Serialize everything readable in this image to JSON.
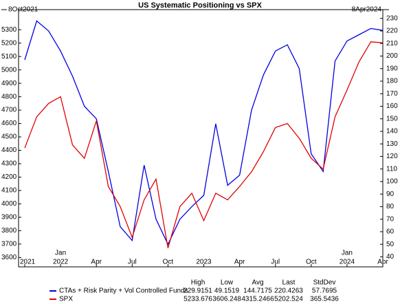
{
  "chart_data": {
    "type": "line",
    "title": "US Systematic Positioning vs SPX",
    "start_label": "8Oct2021",
    "end_label": "8Apr2024",
    "x": [
      "2021-10",
      "2021-11",
      "2021-12",
      "2022-01",
      "2022-02",
      "2022-03",
      "2022-04",
      "2022-05",
      "2022-06",
      "2022-07",
      "2022-08",
      "2022-09",
      "2022-10",
      "2022-11",
      "2022-12",
      "2023-01",
      "2023-02",
      "2023-03",
      "2023-04",
      "2023-05",
      "2023-06",
      "2023-07",
      "2023-08",
      "2023-09",
      "2023-10",
      "2023-11",
      "2023-12",
      "2024-01",
      "2024-02",
      "2024-03",
      "2024-04"
    ],
    "xlim": [
      "2021-10",
      "2024-04"
    ],
    "xticks": [
      {
        "value": "2021-10",
        "label": "2021"
      },
      {
        "value": "2022-01",
        "label": "2022"
      },
      {
        "value": "2022-04",
        "label": "Apr"
      },
      {
        "value": "2022-07",
        "label": "Jul"
      },
      {
        "value": "2022-10",
        "label": "Oct"
      },
      {
        "value": "2023-01",
        "label": "2023"
      },
      {
        "value": "2023-04",
        "label": "Apr"
      },
      {
        "value": "2023-07",
        "label": "Jul"
      },
      {
        "value": "2023-10",
        "label": "Oct"
      },
      {
        "value": "2024-01",
        "label": "2024"
      },
      {
        "value": "2024-04",
        "label": "Apr"
      }
    ],
    "xticks_upper": [
      {
        "value": "2022-01",
        "label": "Jan"
      },
      {
        "value": "2024-01",
        "label": "Jan"
      }
    ],
    "ylim": [
      3530,
      5450
    ],
    "yticks": [
      3600,
      3700,
      3800,
      3900,
      4000,
      4100,
      4200,
      4300,
      4400,
      4500,
      4600,
      4700,
      4800,
      4900,
      5000,
      5100,
      5200,
      5300
    ],
    "y2lim": [
      32,
      237
    ],
    "y2ticks": [
      40,
      50,
      60,
      70,
      80,
      90,
      100,
      110,
      120,
      130,
      140,
      150,
      160,
      170,
      180,
      190,
      200,
      210,
      220,
      230
    ],
    "stats_headers": [
      "High",
      "Low",
      "Avg",
      "Last",
      "StdDev"
    ],
    "series": [
      {
        "name": "CTAs + Risk Parity + Vol Controlled Funds",
        "color": "#0000e0",
        "axis": "y2",
        "values": [
          197,
          228,
          220,
          204,
          184,
          160,
          150,
          108,
          64,
          53,
          113,
          70,
          50,
          70,
          80,
          89,
          146,
          97,
          105,
          157,
          185,
          204,
          209,
          190,
          122,
          108,
          196,
          212,
          217,
          222,
          220.4263
        ],
        "stats": [
          229.9151,
          49.1519,
          144.7175,
          220.4263,
          57.7695
        ]
      },
      {
        "name": "SPX",
        "color": "#e00000",
        "values": [
          4417,
          4650,
          4750,
          4800,
          4440,
          4340,
          4620,
          4130,
          3980,
          3750,
          4030,
          4185,
          3670,
          3980,
          4080,
          3875,
          4080,
          4030,
          4130,
          4240,
          4390,
          4570,
          4600,
          4490,
          4340,
          4260,
          4650,
          4850,
          5060,
          5210,
          5202.524
        ],
        "stats": [
          5233.676,
          3606.248,
          4315.2466,
          5202.524,
          365.5436
        ]
      }
    ]
  }
}
